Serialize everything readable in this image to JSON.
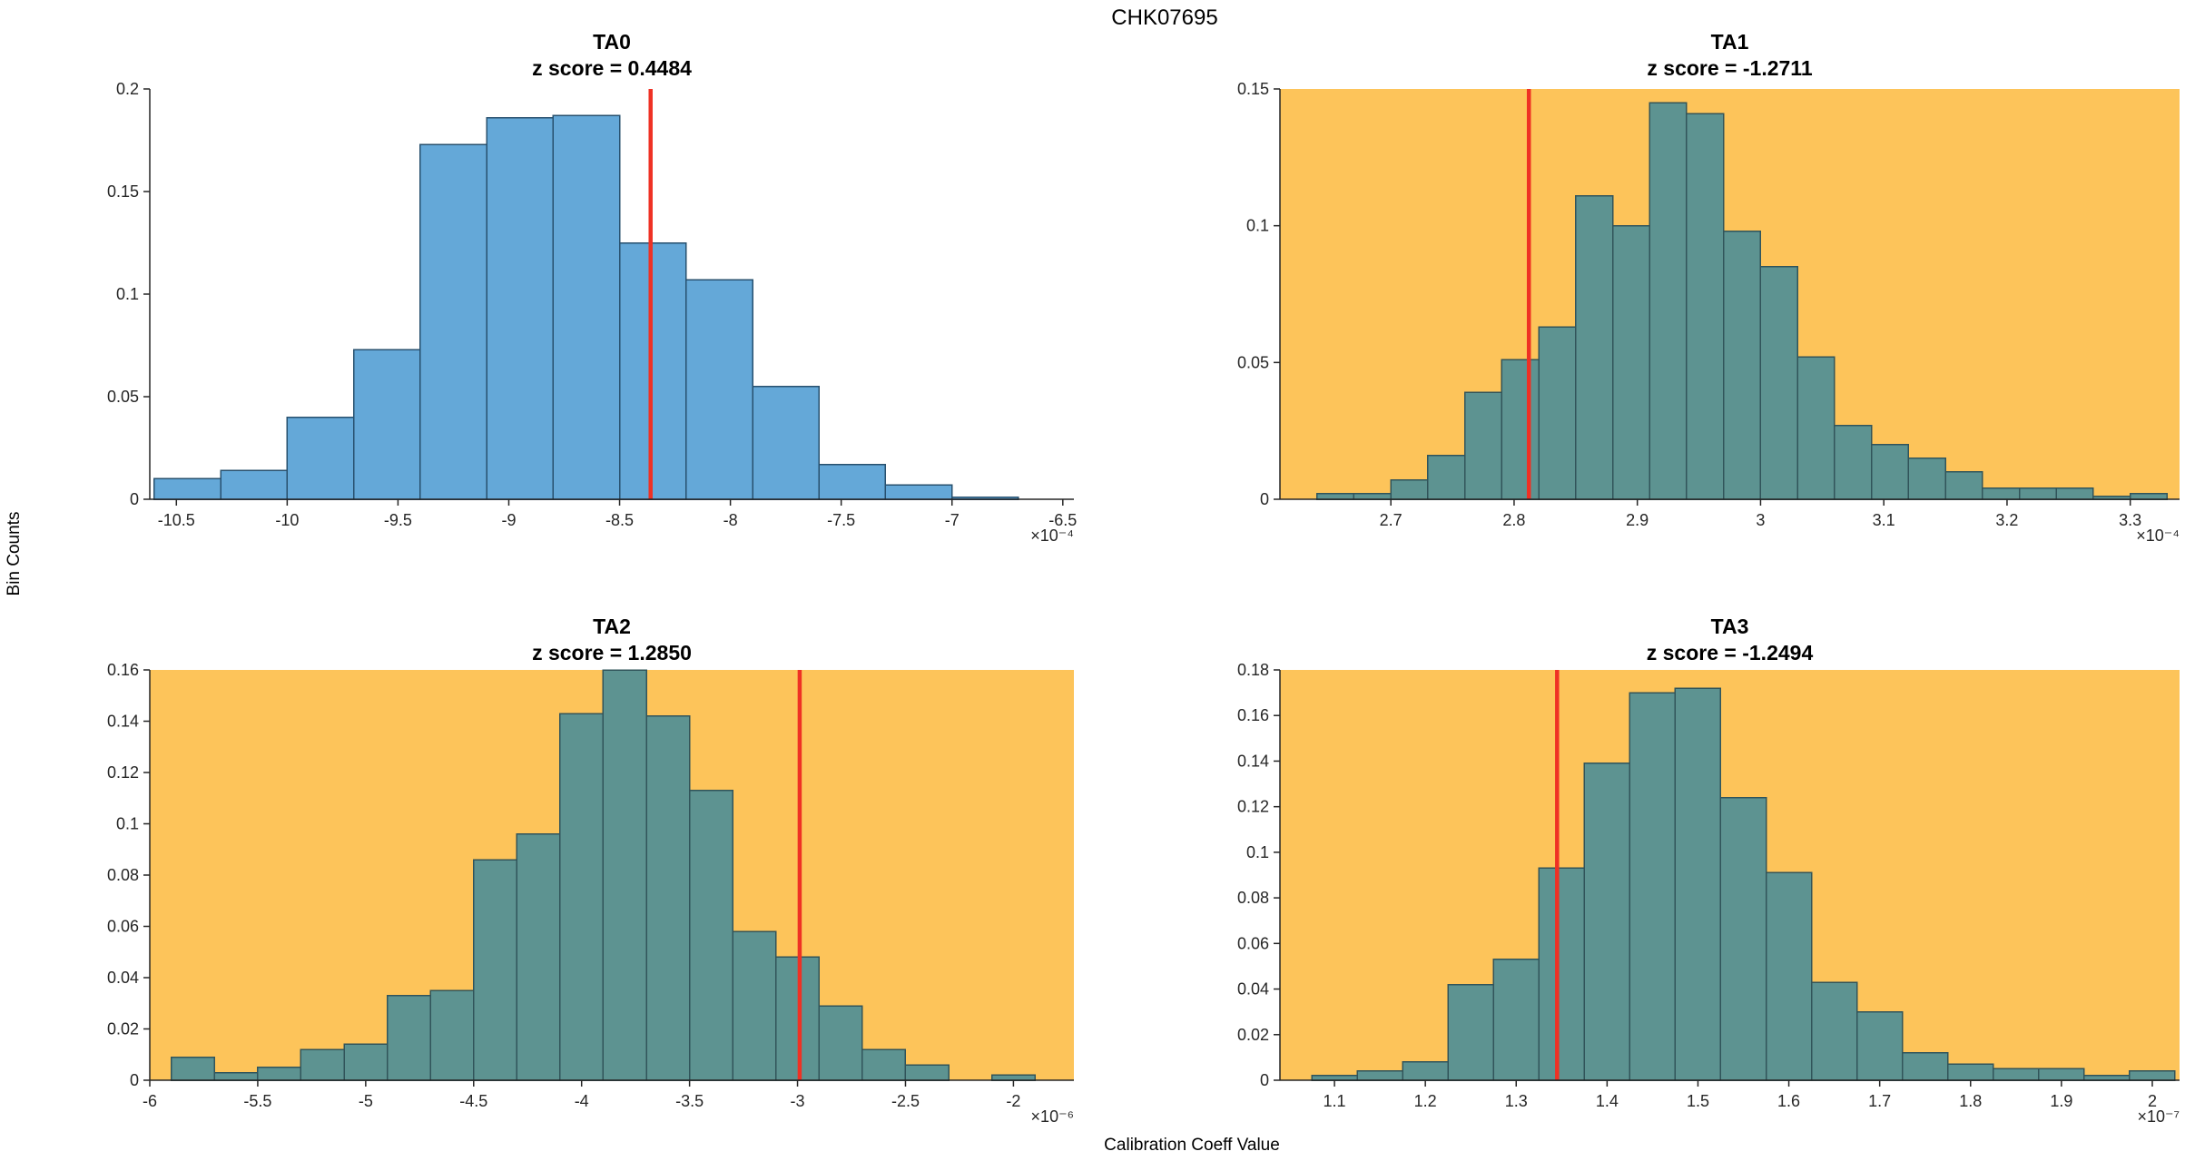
{
  "figure": {
    "title": "CHK07695",
    "ylabel": "Bin Counts",
    "xlabel": "Calibration Coeff Value"
  },
  "colors": {
    "highlight_background": "#fdc45a",
    "plain_background": "#ffffff",
    "blue_bar_face": "#64a8d8",
    "blue_bar_edge": "#27506e",
    "teal_bar_face": "#5d9391",
    "teal_bar_edge": "#31545a",
    "red_line": "#ef3124",
    "axis": "#262626"
  },
  "chart_data": [
    {
      "type": "bar",
      "name": "TA0",
      "subtitle": "z score = 0.4484",
      "z_score": 0.4484,
      "bin_edges": [
        -10.6,
        -10.3,
        -10.0,
        -9.7,
        -9.4,
        -9.1,
        -8.8,
        -8.5,
        -8.2,
        -7.9,
        -7.6,
        -7.3,
        -7.0,
        -6.7
      ],
      "counts": [
        0.01,
        0.014,
        0.04,
        0.073,
        0.173,
        0.186,
        0.187,
        0.125,
        0.107,
        0.055,
        0.017,
        0.007,
        0.001
      ],
      "xlim": [
        -10.62,
        -6.45
      ],
      "ylim": [
        0,
        0.2
      ],
      "xtick_values": [
        -10.5,
        -10,
        -9.5,
        -9,
        -8.5,
        -8,
        -7.5,
        -7,
        -6.5
      ],
      "xtick_labels": [
        "-10.5",
        "-10",
        "-9.5",
        "-9",
        "-8.5",
        "-8",
        "-7.5",
        "-7",
        "-6.5"
      ],
      "ytick_values": [
        0,
        0.05,
        0.1,
        0.15,
        0.2
      ],
      "ytick_labels": [
        "0",
        "0.05",
        "0.1",
        "0.15",
        "0.2"
      ],
      "red_line_x": -8.36,
      "x_exponent_label": "×10⁻⁴",
      "bg_color": "#ffffff",
      "bar_face": "#64a8d8",
      "bar_edge": "#27506e",
      "red_color": "#ef3124",
      "highlighted": false
    },
    {
      "type": "bar",
      "name": "TA1",
      "subtitle": "z score = -1.2711",
      "z_score": -1.2711,
      "bin_edges": [
        2.64,
        2.67,
        2.7,
        2.73,
        2.76,
        2.79,
        2.82,
        2.85,
        2.88,
        2.91,
        2.94,
        2.97,
        3.0,
        3.03,
        3.06,
        3.09,
        3.12,
        3.15,
        3.18,
        3.21,
        3.24,
        3.27,
        3.3,
        3.33
      ],
      "counts": [
        0.002,
        0.002,
        0.007,
        0.016,
        0.039,
        0.051,
        0.063,
        0.111,
        0.1,
        0.145,
        0.141,
        0.098,
        0.085,
        0.052,
        0.027,
        0.02,
        0.015,
        0.01,
        0.004,
        0.004,
        0.004,
        0.001,
        0.002
      ],
      "xlim": [
        2.61,
        3.34
      ],
      "ylim": [
        0,
        0.15
      ],
      "xtick_values": [
        2.7,
        2.8,
        2.9,
        3.0,
        3.1,
        3.2,
        3.3
      ],
      "xtick_labels": [
        "2.7",
        "2.8",
        "2.9",
        "3",
        "3.1",
        "3.2",
        "3.3"
      ],
      "ytick_values": [
        0,
        0.05,
        0.1,
        0.15
      ],
      "ytick_labels": [
        "0",
        "0.05",
        "0.1",
        "0.15"
      ],
      "red_line_x": 2.812,
      "x_exponent_label": "×10⁻⁴",
      "bg_color": "#fdc45a",
      "bar_face": "#5d9391",
      "bar_edge": "#31545a",
      "red_color": "#ef3124",
      "highlighted": true
    },
    {
      "type": "bar",
      "name": "TA2",
      "subtitle": "z score = 1.2850",
      "z_score": 1.285,
      "bin_edges": [
        -5.9,
        -5.7,
        -5.5,
        -5.3,
        -5.1,
        -4.9,
        -4.7,
        -4.5,
        -4.3,
        -4.1,
        -3.9,
        -3.7,
        -3.5,
        -3.3,
        -3.1,
        -2.9,
        -2.7,
        -2.5,
        -2.3,
        -2.1,
        -1.9
      ],
      "counts": [
        0.009,
        0.003,
        0.005,
        0.012,
        0.014,
        0.033,
        0.035,
        0.086,
        0.096,
        0.143,
        0.16,
        0.142,
        0.113,
        0.058,
        0.048,
        0.029,
        0.012,
        0.006,
        0,
        0.002
      ],
      "xlim": [
        -6.0,
        -1.72
      ],
      "ylim": [
        0,
        0.16
      ],
      "xtick_values": [
        -6,
        -5.5,
        -5,
        -4.5,
        -4,
        -3.5,
        -3,
        -2.5,
        -2
      ],
      "xtick_labels": [
        "-6",
        "-5.5",
        "-5",
        "-4.5",
        "-4",
        "-3.5",
        "-3",
        "-2.5",
        "-2"
      ],
      "ytick_values": [
        0,
        0.02,
        0.04,
        0.06,
        0.08,
        0.1,
        0.12,
        0.14,
        0.16
      ],
      "ytick_labels": [
        "0",
        "0.02",
        "0.04",
        "0.06",
        "0.08",
        "0.1",
        "0.12",
        "0.14",
        "0.16"
      ],
      "red_line_x": -2.99,
      "x_exponent_label": "×10⁻⁶",
      "bg_color": "#fdc45a",
      "bar_face": "#5d9391",
      "bar_edge": "#31545a",
      "red_color": "#ef3124",
      "highlighted": true
    },
    {
      "type": "bar",
      "name": "TA3",
      "subtitle": "z score = -1.2494",
      "z_score": -1.2494,
      "bin_edges": [
        1.075,
        1.125,
        1.175,
        1.225,
        1.275,
        1.325,
        1.375,
        1.425,
        1.475,
        1.525,
        1.575,
        1.625,
        1.675,
        1.725,
        1.775,
        1.825,
        1.875,
        1.925,
        1.975,
        2.025
      ],
      "counts": [
        0.002,
        0.004,
        0.008,
        0.042,
        0.053,
        0.093,
        0.139,
        0.17,
        0.172,
        0.124,
        0.091,
        0.043,
        0.03,
        0.012,
        0.007,
        0.005,
        0.005,
        0.002,
        0.004
      ],
      "xlim": [
        1.04,
        2.03
      ],
      "ylim": [
        0,
        0.18
      ],
      "xtick_values": [
        1.1,
        1.2,
        1.3,
        1.4,
        1.5,
        1.6,
        1.7,
        1.8,
        1.9,
        2.0
      ],
      "xtick_labels": [
        "1.1",
        "1.2",
        "1.3",
        "1.4",
        "1.5",
        "1.6",
        "1.7",
        "1.8",
        "1.9",
        "2"
      ],
      "ytick_values": [
        0,
        0.02,
        0.04,
        0.06,
        0.08,
        0.1,
        0.12,
        0.14,
        0.16,
        0.18
      ],
      "ytick_labels": [
        "0",
        "0.02",
        "0.04",
        "0.06",
        "0.08",
        "0.1",
        "0.12",
        "0.14",
        "0.16",
        "0.18"
      ],
      "red_line_x": 1.345,
      "x_exponent_label": "×10⁻⁷",
      "bg_color": "#fdc45a",
      "bar_face": "#5d9391",
      "bar_edge": "#31545a",
      "red_color": "#ef3124",
      "highlighted": true
    }
  ]
}
